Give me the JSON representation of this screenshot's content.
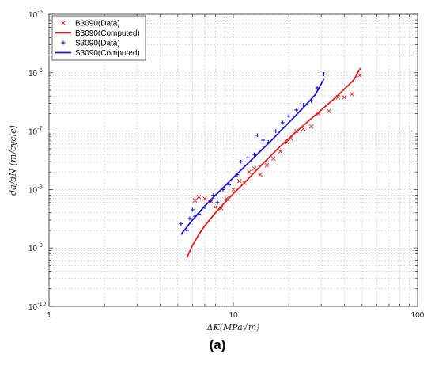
{
  "chart_data": {
    "type": "scatter",
    "xlabel": "ΔK(MPa√m)",
    "ylabel": "da/dN (m/cycle)",
    "xscale": "log",
    "yscale": "log",
    "xlim": [
      1,
      100
    ],
    "ylim": [
      1e-10,
      1e-05
    ],
    "x_ticks": [
      {
        "value": 1,
        "label": "1"
      },
      {
        "value": 10,
        "label": "10"
      },
      {
        "value": 100,
        "label": "100"
      }
    ],
    "y_ticks": [
      {
        "value": 1e-10,
        "base": "10",
        "exp": "-10"
      },
      {
        "value": 1e-09,
        "base": "10",
        "exp": "-9"
      },
      {
        "value": 1e-08,
        "base": "10",
        "exp": "-8"
      },
      {
        "value": 1e-07,
        "base": "10",
        "exp": "-7"
      },
      {
        "value": 1e-06,
        "base": "10",
        "exp": "-6"
      },
      {
        "value": 1e-05,
        "base": "10",
        "exp": "-5"
      }
    ],
    "grid": true,
    "legend_position": "top-left",
    "series": [
      {
        "name": "B3090(Data)",
        "kind": "markers",
        "marker": "x",
        "color": "#e03030",
        "points": [
          [
            6.2,
            6.5e-09
          ],
          [
            6.5,
            7.5e-09
          ],
          [
            7.0,
            7e-09
          ],
          [
            7.6,
            6.2e-09
          ],
          [
            8.0,
            5e-09
          ],
          [
            8.6,
            4.8e-09
          ],
          [
            9.2,
            7e-09
          ],
          [
            10.0,
            1e-08
          ],
          [
            10.8,
            1.4e-08
          ],
          [
            11.5,
            1.3e-08
          ],
          [
            12.2,
            2e-08
          ],
          [
            13.0,
            2.3e-08
          ],
          [
            14.0,
            1.8e-08
          ],
          [
            15.2,
            2.6e-08
          ],
          [
            16.5,
            3.4e-08
          ],
          [
            18.0,
            4.5e-08
          ],
          [
            19.5,
            6.5e-08
          ],
          [
            20.5,
            7.5e-08
          ],
          [
            22.0,
            1e-07
          ],
          [
            24.0,
            1.1e-07
          ],
          [
            26.5,
            1.2e-07
          ],
          [
            29.0,
            2e-07
          ],
          [
            33.0,
            2.2e-07
          ],
          [
            37.0,
            3.8e-07
          ],
          [
            40.0,
            3.8e-07
          ],
          [
            44.0,
            4.3e-07
          ],
          [
            48.5,
            9e-07
          ]
        ]
      },
      {
        "name": "B3090(Computed)",
        "kind": "line",
        "color": "#e02020",
        "points": [
          [
            5.6,
            6.8e-10
          ],
          [
            6.0,
            1.1e-09
          ],
          [
            6.5,
            1.7e-09
          ],
          [
            7.0,
            2.4e-09
          ],
          [
            8.0,
            4e-09
          ],
          [
            9.0,
            6e-09
          ],
          [
            10.0,
            8.5e-09
          ],
          [
            12.0,
            1.5e-08
          ],
          [
            14.0,
            2.5e-08
          ],
          [
            16.0,
            3.8e-08
          ],
          [
            18.0,
            5.5e-08
          ],
          [
            20.0,
            7.5e-08
          ],
          [
            25.0,
            1.4e-07
          ],
          [
            30.0,
            2.3e-07
          ],
          [
            35.0,
            3.5e-07
          ],
          [
            40.0,
            5.2e-07
          ],
          [
            45.0,
            7.5e-07
          ],
          [
            49.0,
            1.2e-06
          ]
        ]
      },
      {
        "name": "S3090(Data)",
        "kind": "markers",
        "marker": "+",
        "color": "#2020d0",
        "points": [
          [
            5.2,
            2.6e-09
          ],
          [
            5.6,
            2e-09
          ],
          [
            5.8,
            3.2e-09
          ],
          [
            6.0,
            4.5e-09
          ],
          [
            6.2,
            3.5e-09
          ],
          [
            6.5,
            3.8e-09
          ],
          [
            7.0,
            5e-09
          ],
          [
            7.5,
            6.5e-09
          ],
          [
            7.8,
            8e-09
          ],
          [
            8.2,
            6e-09
          ],
          [
            8.8,
            1e-08
          ],
          [
            9.5,
            1.2e-08
          ],
          [
            10.5,
            1.8e-08
          ],
          [
            11.0,
            3e-08
          ],
          [
            12.0,
            3.5e-08
          ],
          [
            13.0,
            4e-08
          ],
          [
            13.5,
            8.5e-08
          ],
          [
            14.5,
            7e-08
          ],
          [
            15.5,
            6.5e-08
          ],
          [
            17.0,
            1e-07
          ],
          [
            18.5,
            1.4e-07
          ],
          [
            20.0,
            1.8e-07
          ],
          [
            22.0,
            2.3e-07
          ],
          [
            24.0,
            2.8e-07
          ],
          [
            26.5,
            3.3e-07
          ],
          [
            28.5,
            5.5e-07
          ],
          [
            31.0,
            9.5e-07
          ]
        ]
      },
      {
        "name": "S3090(Computed)",
        "kind": "line",
        "color": "#1a1ad0",
        "points": [
          [
            5.2,
            1.7e-09
          ],
          [
            6.0,
            3e-09
          ],
          [
            7.0,
            5.2e-09
          ],
          [
            8.0,
            8e-09
          ],
          [
            9.0,
            1.15e-08
          ],
          [
            10.0,
            1.6e-08
          ],
          [
            12.0,
            2.8e-08
          ],
          [
            14.0,
            4.5e-08
          ],
          [
            16.0,
            6.8e-08
          ],
          [
            18.0,
            1e-07
          ],
          [
            20.0,
            1.4e-07
          ],
          [
            22.0,
            1.9e-07
          ],
          [
            25.0,
            2.9e-07
          ],
          [
            28.0,
            4.3e-07
          ],
          [
            31.0,
            7.8e-07
          ]
        ]
      }
    ]
  },
  "figure": {
    "panel_label": "(a)"
  }
}
